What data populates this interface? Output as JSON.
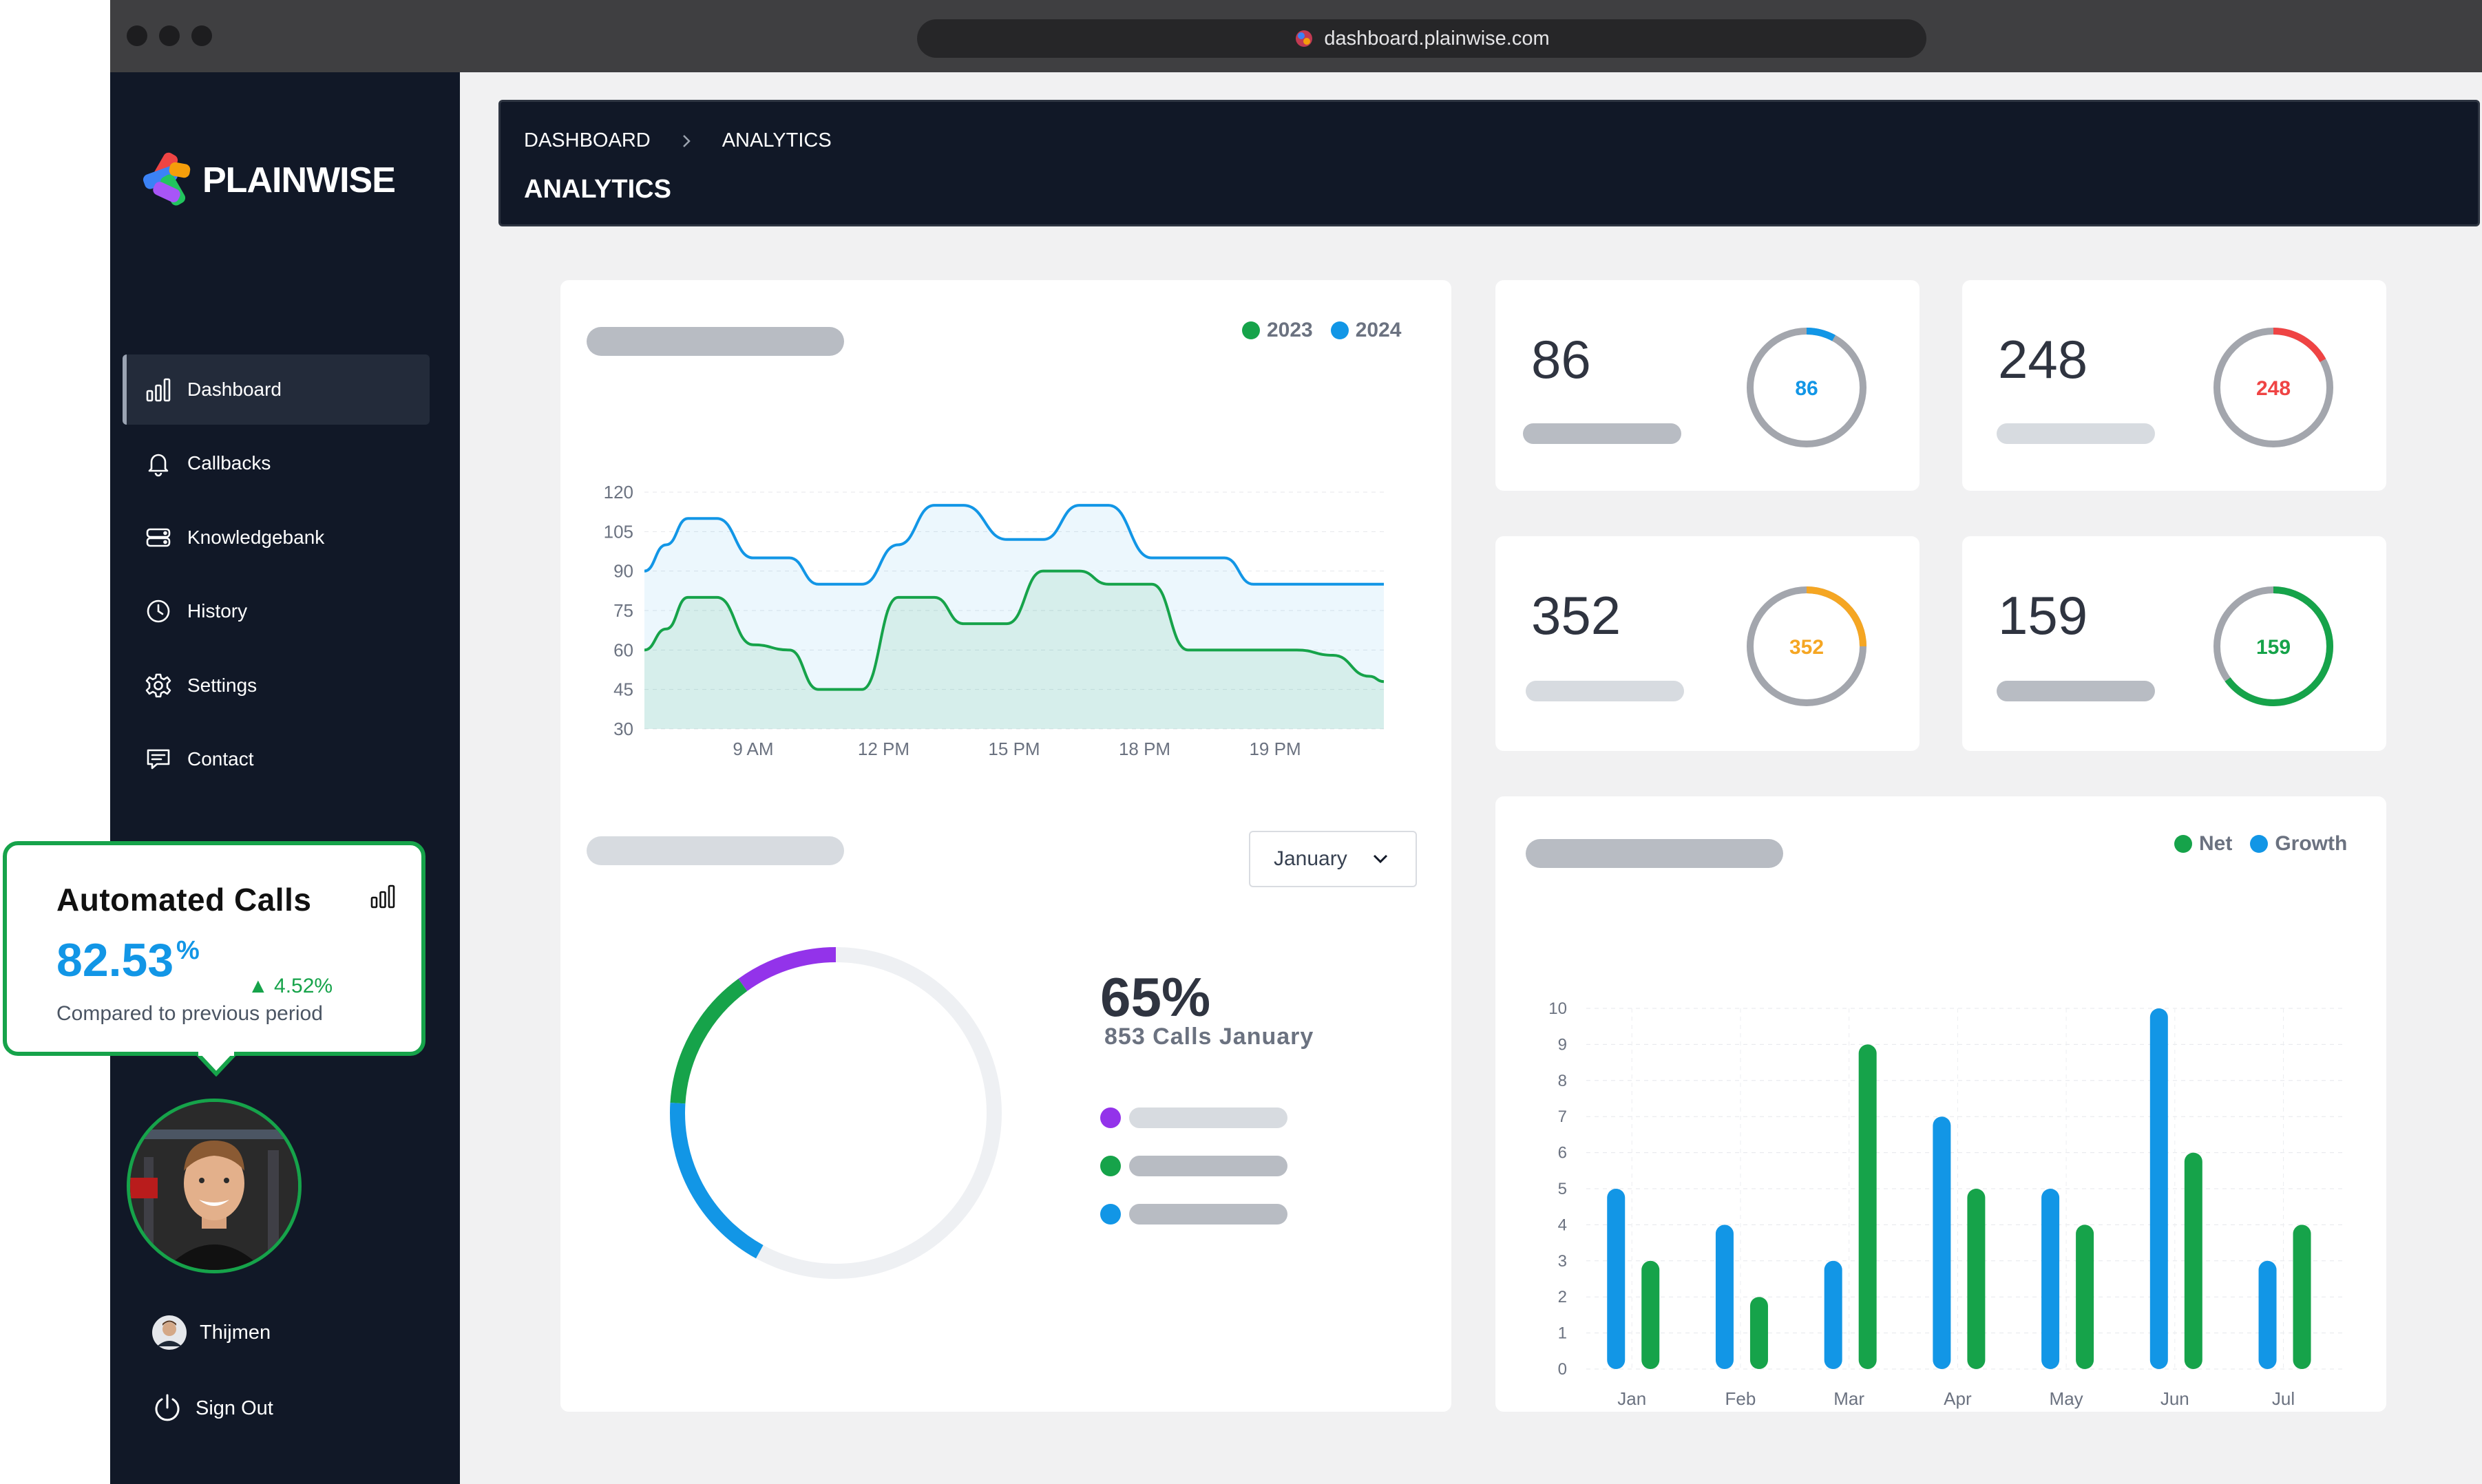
{
  "browser": {
    "url": "dashboard.plainwise.com"
  },
  "brand": {
    "name": "PLAINWISE"
  },
  "sidebar": {
    "items": [
      {
        "label": "Dashboard",
        "icon": "bar-chart-icon",
        "active": true
      },
      {
        "label": "Callbacks",
        "icon": "bell-icon"
      },
      {
        "label": "Knowledgebank",
        "icon": "database-icon"
      },
      {
        "label": "History",
        "icon": "clock-icon"
      },
      {
        "label": "Settings",
        "icon": "gear-icon"
      },
      {
        "label": "Contact",
        "icon": "chat-icon"
      }
    ],
    "user": "Thijmen",
    "sign_out": "Sign Out"
  },
  "header": {
    "breadcrumb": [
      "DASHBOARD",
      "ANALYTICS"
    ],
    "title": "ANALYTICS"
  },
  "stats": [
    {
      "value": "86",
      "ring_label": "86",
      "color": "#1296e6",
      "fraction": 0.08
    },
    {
      "value": "248",
      "ring_label": "248",
      "color": "#ef4444",
      "fraction": 0.17
    },
    {
      "value": "352",
      "ring_label": "352",
      "color": "#f5a623",
      "fraction": 0.25
    },
    {
      "value": "159",
      "ring_label": "159",
      "color": "#16a34a",
      "fraction": 0.65
    }
  ],
  "donut": {
    "select_value": "January",
    "percent": "65%",
    "caption": "853 Calls January",
    "colors": [
      "#9333ea",
      "#16a34a",
      "#1296e6"
    ]
  },
  "popup": {
    "title": "Automated Calls",
    "value": "82.53",
    "unit": "%",
    "change": "▲ 4.52%",
    "subtitle": "Compared to previous period"
  },
  "colors": {
    "green": "#16a34a",
    "blue": "#1296e6"
  },
  "chart_data": [
    {
      "type": "area",
      "legend": [
        "2023",
        "2024"
      ],
      "x_ticks": [
        "9 AM",
        "12 PM",
        "15 PM",
        "18 PM",
        "19 PM"
      ],
      "y_ticks": [
        120,
        105,
        90,
        75,
        60,
        45,
        30
      ],
      "ylim": [
        30,
        120
      ],
      "grid": true,
      "series": [
        {
          "name": "2023",
          "color": "#16a34a",
          "x": [
            0,
            0.3,
            0.6,
            1.0,
            1.5,
            2.0,
            2.4,
            3.0,
            3.5,
            4.0,
            4.4,
            5.0,
            5.5,
            6.0,
            6.4,
            7.0,
            7.5,
            8.0,
            8.4,
            9.0,
            9.5,
            10.0,
            10.2
          ],
          "values": [
            60,
            68,
            80,
            80,
            62,
            60,
            45,
            45,
            80,
            80,
            70,
            70,
            90,
            90,
            85,
            85,
            60,
            60,
            60,
            60,
            58,
            50,
            48
          ]
        },
        {
          "name": "2024",
          "color": "#1296e6",
          "x": [
            0,
            0.3,
            0.6,
            1.0,
            1.5,
            2.0,
            2.4,
            3.0,
            3.5,
            4.0,
            4.4,
            5.0,
            5.5,
            6.0,
            6.4,
            7.0,
            7.5,
            8.0,
            8.4,
            9.0,
            9.5,
            10.0,
            10.2
          ],
          "values": [
            90,
            100,
            110,
            110,
            95,
            95,
            85,
            85,
            100,
            115,
            115,
            102,
            102,
            115,
            115,
            95,
            95,
            95,
            85,
            85,
            85,
            85,
            85
          ]
        }
      ]
    },
    {
      "type": "pie",
      "slices": [
        {
          "value": 0.1,
          "color": "#9333ea"
        },
        {
          "value": 0.14,
          "color": "#16a34a"
        },
        {
          "value": 0.18,
          "color": "#1296e6"
        },
        {
          "value": 0.58,
          "color": "#eef0f3"
        }
      ]
    },
    {
      "type": "bar",
      "legend": [
        "Net",
        "Growth"
      ],
      "categories": [
        "Jan",
        "Feb",
        "Mar",
        "Apr",
        "May",
        "Jun",
        "Jul"
      ],
      "y_ticks": [
        10,
        9,
        8,
        7,
        6,
        5,
        4,
        3,
        2,
        1,
        0
      ],
      "ylim": [
        0,
        10
      ],
      "grid": true,
      "series": [
        {
          "name": "Growth",
          "color": "#1296e6",
          "values": [
            5,
            4,
            3,
            7,
            5,
            10,
            3
          ]
        },
        {
          "name": "Net",
          "color": "#16a34a",
          "values": [
            3,
            2,
            9,
            5,
            4,
            6,
            4
          ]
        }
      ]
    }
  ]
}
